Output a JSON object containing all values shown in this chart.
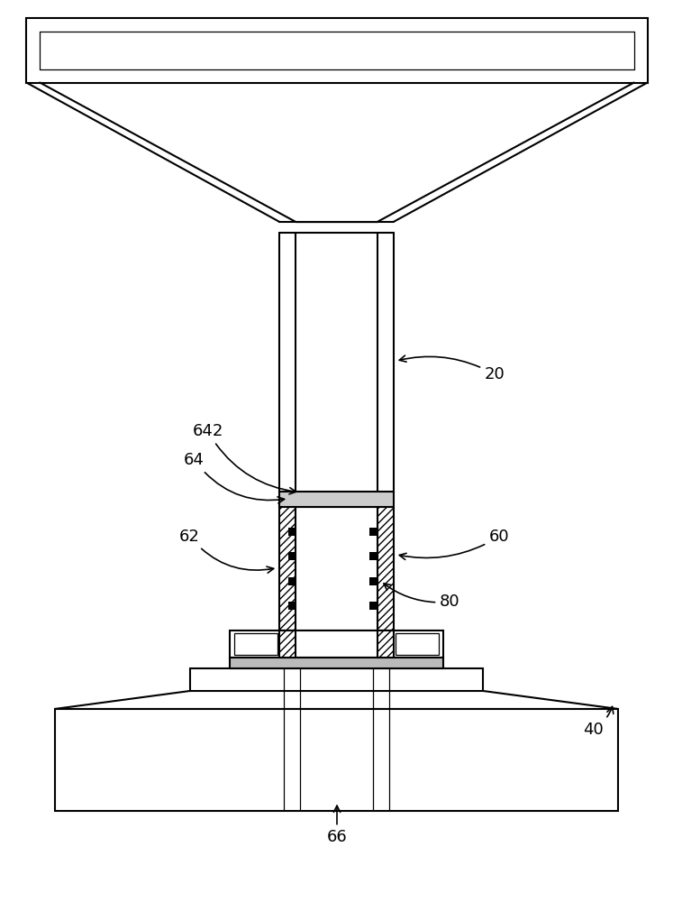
{
  "fig_width": 7.47,
  "fig_height": 10.0,
  "dpi": 100,
  "bg_color": "#ffffff",
  "lc": "#000000",
  "lw": 1.5,
  "tlw": 0.9
}
